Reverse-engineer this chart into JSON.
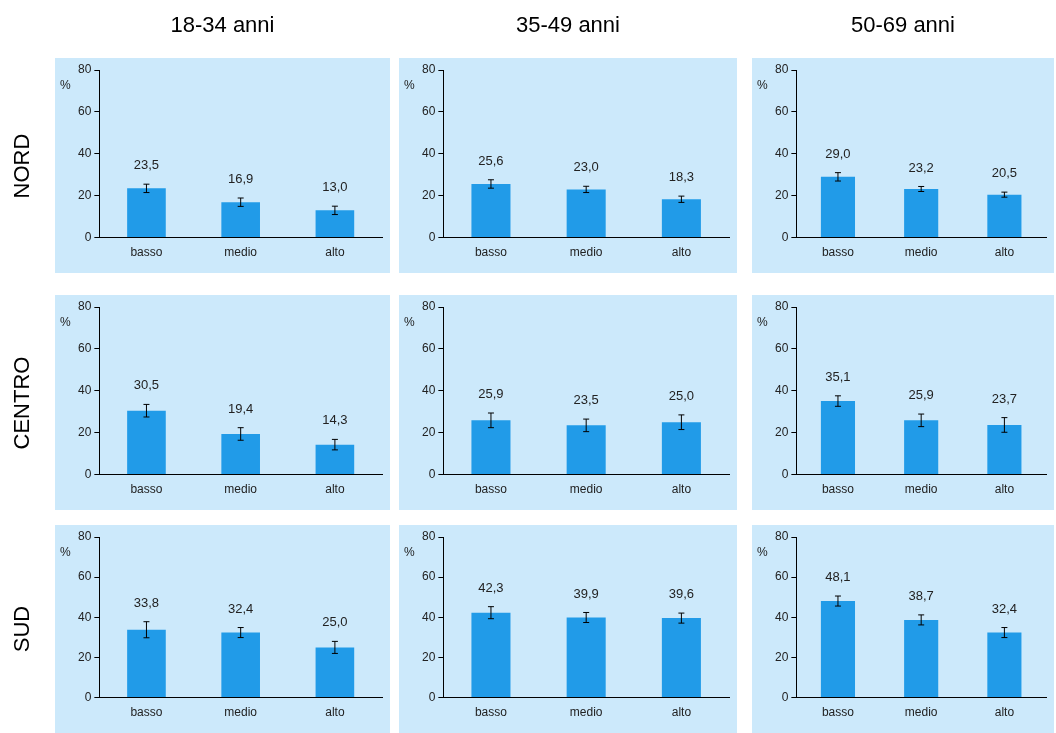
{
  "chart_data": [
    {
      "type": "bar",
      "title": "18-34 anni",
      "annotations": [
        "NORD"
      ],
      "ylabel": "%",
      "categories": [
        "basso",
        "medio",
        "alto"
      ],
      "values": [
        23.5,
        16.9,
        13.0
      ],
      "errors": [
        2,
        2,
        2
      ],
      "value_labels": [
        "23,5",
        "16,9",
        "13,0"
      ],
      "color": "#219be8",
      "ylim": [
        0,
        80
      ],
      "yticks": [
        0,
        20,
        40,
        60,
        80
      ]
    },
    {
      "type": "bar",
      "title": "35-49 anni",
      "ylabel": "%",
      "categories": [
        "basso",
        "medio",
        "alto"
      ],
      "values": [
        25.6,
        23.0,
        18.3
      ],
      "errors": [
        2,
        1.5,
        1.5
      ],
      "value_labels": [
        "25,6",
        "23,0",
        "18,3"
      ],
      "color": "#219be8",
      "ylim": [
        0,
        80
      ],
      "yticks": [
        0,
        20,
        40,
        60,
        80
      ]
    },
    {
      "type": "bar",
      "title": "50-69 anni",
      "ylabel": "%",
      "categories": [
        "basso",
        "medio",
        "alto"
      ],
      "values": [
        29.0,
        23.2,
        20.5
      ],
      "errors": [
        2,
        1.2,
        1.2
      ],
      "value_labels": [
        "29,0",
        "23,2",
        "20,5"
      ],
      "color": "#219be8",
      "ylim": [
        0,
        80
      ],
      "yticks": [
        0,
        20,
        40,
        60,
        80
      ]
    },
    {
      "type": "bar",
      "annotations": [
        "CENTRO"
      ],
      "ylabel": "%",
      "categories": [
        "basso",
        "medio",
        "alto"
      ],
      "values": [
        30.5,
        19.4,
        14.3
      ],
      "errors": [
        3,
        3,
        2.5
      ],
      "value_labels": [
        "30,5",
        "19,4",
        "14,3"
      ],
      "color": "#219be8",
      "ylim": [
        0,
        80
      ],
      "yticks": [
        0,
        20,
        40,
        60,
        80
      ]
    },
    {
      "type": "bar",
      "ylabel": "%",
      "categories": [
        "basso",
        "medio",
        "alto"
      ],
      "values": [
        25.9,
        23.5,
        25.0
      ],
      "errors": [
        3.5,
        3,
        3.5
      ],
      "value_labels": [
        "25,9",
        "23,5",
        "25,0"
      ],
      "color": "#219be8",
      "ylim": [
        0,
        80
      ],
      "yticks": [
        0,
        20,
        40,
        60,
        80
      ]
    },
    {
      "type": "bar",
      "ylabel": "%",
      "categories": [
        "basso",
        "medio",
        "alto"
      ],
      "values": [
        35.1,
        25.9,
        23.7
      ],
      "errors": [
        2.5,
        3,
        3.5
      ],
      "value_labels": [
        "35,1",
        "25,9",
        "23,7"
      ],
      "color": "#219be8",
      "ylim": [
        0,
        80
      ],
      "yticks": [
        0,
        20,
        40,
        60,
        80
      ]
    },
    {
      "type": "bar",
      "annotations": [
        "SUD"
      ],
      "ylabel": "%",
      "categories": [
        "basso",
        "medio",
        "alto"
      ],
      "values": [
        33.8,
        32.4,
        25.0
      ],
      "errors": [
        4,
        2.5,
        3
      ],
      "value_labels": [
        "33,8",
        "32,4",
        "25,0"
      ],
      "color": "#219be8",
      "ylim": [
        0,
        80
      ],
      "yticks": [
        0,
        20,
        40,
        60,
        80
      ]
    },
    {
      "type": "bar",
      "ylabel": "%",
      "categories": [
        "basso",
        "medio",
        "alto"
      ],
      "values": [
        42.3,
        39.9,
        39.6
      ],
      "errors": [
        3,
        2.5,
        2.5
      ],
      "value_labels": [
        "42,3",
        "39,9",
        "39,6"
      ],
      "color": "#219be8",
      "ylim": [
        0,
        80
      ],
      "yticks": [
        0,
        20,
        40,
        60,
        80
      ]
    },
    {
      "type": "bar",
      "ylabel": "%",
      "categories": [
        "basso",
        "medio",
        "alto"
      ],
      "values": [
        48.1,
        38.7,
        32.4
      ],
      "errors": [
        2.5,
        2.5,
        2.5
      ],
      "value_labels": [
        "48,1",
        "38,7",
        "32,4"
      ],
      "color": "#219be8",
      "ylim": [
        0,
        80
      ],
      "yticks": [
        0,
        20,
        40,
        60,
        80
      ]
    }
  ]
}
